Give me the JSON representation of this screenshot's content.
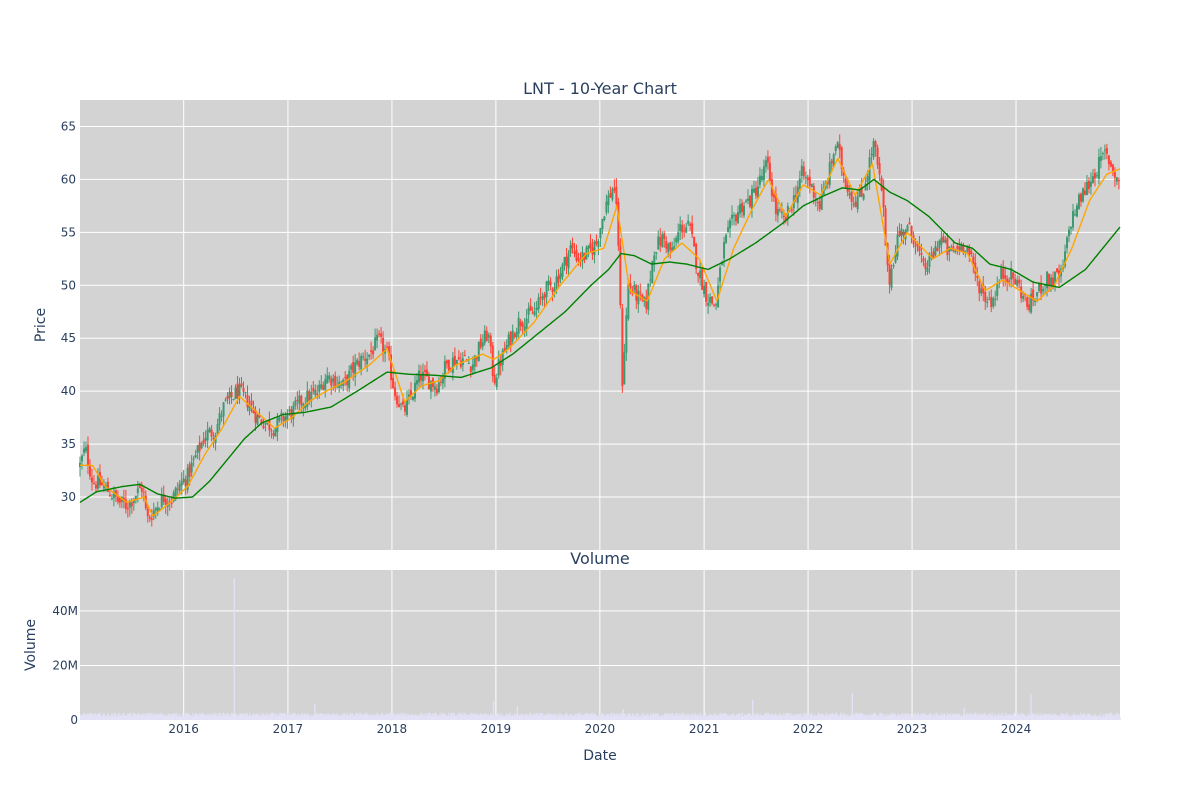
{
  "chart_data": [
    {
      "type": "candlestick",
      "title": "LNT - 10-Year Chart",
      "ylabel": "Price",
      "xlabel": "",
      "xlim": [
        "2015-01-02",
        "2024-12-31"
      ],
      "ylim": [
        25,
        67.5
      ],
      "y_ticks": [
        30,
        35,
        40,
        45,
        50,
        55,
        60,
        65
      ],
      "grid": true,
      "legend": "none",
      "background": "#d3d3d3",
      "colors": {
        "up": "#3d9970",
        "down": "#ff4136",
        "short_ma": "#ffa500",
        "long_ma": "#008000"
      },
      "close_anchors": [
        [
          "2015-01-02",
          33.0
        ],
        [
          "2015-01-20",
          34.6
        ],
        [
          "2015-02-15",
          31.5
        ],
        [
          "2015-03-15",
          31.2
        ],
        [
          "2015-04-15",
          30.5
        ],
        [
          "2015-05-20",
          29.5
        ],
        [
          "2015-06-15",
          29.2
        ],
        [
          "2015-07-15",
          30.2
        ],
        [
          "2015-08-10",
          31.0
        ],
        [
          "2015-08-25",
          27.8
        ],
        [
          "2015-09-20",
          28.8
        ],
        [
          "2015-10-20",
          30.0
        ],
        [
          "2015-11-20",
          29.8
        ],
        [
          "2015-12-20",
          31.2
        ],
        [
          "2016-01-15",
          32.0
        ],
        [
          "2016-02-15",
          34.0
        ],
        [
          "2016-03-20",
          36.0
        ],
        [
          "2016-04-20",
          36.2
        ],
        [
          "2016-05-20",
          38.5
        ],
        [
          "2016-06-20",
          39.5
        ],
        [
          "2016-07-10",
          40.0
        ],
        [
          "2016-08-15",
          39.0
        ],
        [
          "2016-09-15",
          37.5
        ],
        [
          "2016-10-15",
          37.0
        ],
        [
          "2016-11-15",
          36.5
        ],
        [
          "2016-12-15",
          37.5
        ],
        [
          "2017-01-15",
          38.0
        ],
        [
          "2017-02-15",
          39.0
        ],
        [
          "2017-03-15",
          39.5
        ],
        [
          "2017-04-15",
          39.8
        ],
        [
          "2017-05-15",
          41.5
        ],
        [
          "2017-06-15",
          41.0
        ],
        [
          "2017-07-15",
          40.5
        ],
        [
          "2017-08-15",
          42.0
        ],
        [
          "2017-09-15",
          43.0
        ],
        [
          "2017-10-15",
          43.5
        ],
        [
          "2017-11-15",
          44.8
        ],
        [
          "2017-12-15",
          43.5
        ],
        [
          "2018-01-10",
          40.0
        ],
        [
          "2018-02-10",
          38.0
        ],
        [
          "2018-03-10",
          39.5
        ],
        [
          "2018-04-10",
          41.5
        ],
        [
          "2018-05-10",
          41.0
        ],
        [
          "2018-06-10",
          40.5
        ],
        [
          "2018-07-10",
          42.5
        ],
        [
          "2018-08-10",
          43.0
        ],
        [
          "2018-09-10",
          43.0
        ],
        [
          "2018-10-10",
          42.5
        ],
        [
          "2018-11-10",
          44.5
        ],
        [
          "2018-12-05",
          45.5
        ],
        [
          "2018-12-25",
          41.0
        ],
        [
          "2019-01-20",
          43.0
        ],
        [
          "2019-02-20",
          45.0
        ],
        [
          "2019-03-20",
          46.5
        ],
        [
          "2019-04-20",
          47.0
        ],
        [
          "2019-05-20",
          47.5
        ],
        [
          "2019-06-20",
          49.5
        ],
        [
          "2019-07-20",
          50.0
        ],
        [
          "2019-08-20",
          51.5
        ],
        [
          "2019-09-20",
          53.5
        ],
        [
          "2019-10-20",
          52.5
        ],
        [
          "2019-11-20",
          53.0
        ],
        [
          "2019-12-20",
          54.0
        ],
        [
          "2020-01-20",
          57.5
        ],
        [
          "2020-02-20",
          59.5
        ],
        [
          "2020-03-05",
          55.0
        ],
        [
          "2020-03-20",
          41.0
        ],
        [
          "2020-04-10",
          50.0
        ],
        [
          "2020-05-10",
          49.0
        ],
        [
          "2020-06-10",
          48.0
        ],
        [
          "2020-07-10",
          53.5
        ],
        [
          "2020-08-10",
          54.5
        ],
        [
          "2020-09-10",
          53.0
        ],
        [
          "2020-10-10",
          55.5
        ],
        [
          "2020-11-10",
          55.5
        ],
        [
          "2020-12-10",
          51.5
        ],
        [
          "2021-01-10",
          49.0
        ],
        [
          "2021-02-10",
          48.0
        ],
        [
          "2021-03-10",
          53.5
        ],
        [
          "2021-04-10",
          56.0
        ],
        [
          "2021-05-10",
          57.5
        ],
        [
          "2021-06-10",
          58.0
        ],
        [
          "2021-07-10",
          59.5
        ],
        [
          "2021-08-10",
          61.5
        ],
        [
          "2021-09-10",
          57.0
        ],
        [
          "2021-10-10",
          56.0
        ],
        [
          "2021-11-10",
          58.0
        ],
        [
          "2021-12-10",
          60.5
        ],
        [
          "2022-01-10",
          59.5
        ],
        [
          "2022-02-10",
          57.5
        ],
        [
          "2022-03-10",
          60.0
        ],
        [
          "2022-04-10",
          63.5
        ],
        [
          "2022-05-10",
          60.0
        ],
        [
          "2022-06-10",
          58.0
        ],
        [
          "2022-07-10",
          58.5
        ],
        [
          "2022-08-20",
          63.5
        ],
        [
          "2022-09-20",
          58.0
        ],
        [
          "2022-10-10",
          50.0
        ],
        [
          "2022-11-10",
          54.5
        ],
        [
          "2022-12-10",
          55.5
        ],
        [
          "2023-01-10",
          54.5
        ],
        [
          "2023-02-10",
          51.5
        ],
        [
          "2023-03-10",
          52.5
        ],
        [
          "2023-04-10",
          54.5
        ],
        [
          "2023-05-10",
          53.0
        ],
        [
          "2023-06-10",
          53.5
        ],
        [
          "2023-07-10",
          54.0
        ],
        [
          "2023-08-10",
          51.0
        ],
        [
          "2023-09-10",
          49.0
        ],
        [
          "2023-10-10",
          48.5
        ],
        [
          "2023-11-10",
          51.0
        ],
        [
          "2023-12-10",
          51.0
        ],
        [
          "2024-01-10",
          50.0
        ],
        [
          "2024-02-10",
          48.0
        ],
        [
          "2024-03-10",
          49.0
        ],
        [
          "2024-04-10",
          50.5
        ],
        [
          "2024-05-10",
          50.5
        ],
        [
          "2024-06-10",
          51.0
        ],
        [
          "2024-07-10",
          56.0
        ],
        [
          "2024-08-10",
          58.0
        ],
        [
          "2024-09-10",
          59.5
        ],
        [
          "2024-10-10",
          61.0
        ],
        [
          "2024-11-10",
          62.5
        ],
        [
          "2024-12-31",
          59.5
        ]
      ],
      "ma_short": [
        [
          "2015-01-02",
          33.0
        ],
        [
          "2015-02-15",
          33.0
        ],
        [
          "2015-04-01",
          31.0
        ],
        [
          "2015-06-15",
          29.5
        ],
        [
          "2015-08-15",
          30.0
        ],
        [
          "2015-09-15",
          28.2
        ],
        [
          "2015-11-15",
          29.5
        ],
        [
          "2016-01-15",
          31.0
        ],
        [
          "2016-03-15",
          34.0
        ],
        [
          "2016-05-15",
          36.5
        ],
        [
          "2016-07-15",
          39.5
        ],
        [
          "2016-09-15",
          38.0
        ],
        [
          "2016-11-15",
          36.5
        ],
        [
          "2017-01-15",
          37.5
        ],
        [
          "2017-03-15",
          39.0
        ],
        [
          "2017-05-15",
          40.0
        ],
        [
          "2017-07-15",
          40.8
        ],
        [
          "2017-10-15",
          42.5
        ],
        [
          "2017-12-15",
          44.0
        ],
        [
          "2018-02-15",
          39.0
        ],
        [
          "2018-04-15",
          40.5
        ],
        [
          "2018-06-15",
          41.0
        ],
        [
          "2018-08-15",
          42.5
        ],
        [
          "2018-11-15",
          43.5
        ],
        [
          "2018-12-25",
          43.0
        ],
        [
          "2019-02-15",
          44.0
        ],
        [
          "2019-05-15",
          46.5
        ],
        [
          "2019-08-15",
          50.0
        ],
        [
          "2019-11-15",
          53.0
        ],
        [
          "2020-01-15",
          53.5
        ],
        [
          "2020-03-01",
          57.5
        ],
        [
          "2020-04-15",
          49.5
        ],
        [
          "2020-06-15",
          48.5
        ],
        [
          "2020-08-15",
          52.5
        ],
        [
          "2020-10-15",
          54.0
        ],
        [
          "2020-12-15",
          52.5
        ],
        [
          "2021-02-15",
          48.5
        ],
        [
          "2021-04-15",
          53.5
        ],
        [
          "2021-06-15",
          57.0
        ],
        [
          "2021-08-15",
          60.0
        ],
        [
          "2021-10-15",
          56.5
        ],
        [
          "2021-12-15",
          59.5
        ],
        [
          "2022-02-15",
          58.5
        ],
        [
          "2022-04-15",
          62.0
        ],
        [
          "2022-06-15",
          58.5
        ],
        [
          "2022-08-15",
          61.5
        ],
        [
          "2022-10-15",
          52.0
        ],
        [
          "2022-12-15",
          55.0
        ],
        [
          "2023-03-15",
          52.5
        ],
        [
          "2023-05-15",
          53.5
        ],
        [
          "2023-07-15",
          53.0
        ],
        [
          "2023-09-15",
          49.5
        ],
        [
          "2023-11-15",
          50.5
        ],
        [
          "2024-01-15",
          49.5
        ],
        [
          "2024-03-15",
          48.5
        ],
        [
          "2024-05-15",
          50.0
        ],
        [
          "2024-07-15",
          53.5
        ],
        [
          "2024-09-15",
          58.0
        ],
        [
          "2024-11-15",
          60.5
        ],
        [
          "2024-12-31",
          61.0
        ]
      ],
      "ma_long": [
        [
          "2015-01-02",
          29.5
        ],
        [
          "2015-03-01",
          30.5
        ],
        [
          "2015-06-01",
          31.0
        ],
        [
          "2015-08-01",
          31.2
        ],
        [
          "2015-10-01",
          30.3
        ],
        [
          "2015-12-01",
          29.9
        ],
        [
          "2016-02-01",
          30.0
        ],
        [
          "2016-04-01",
          31.5
        ],
        [
          "2016-06-01",
          33.5
        ],
        [
          "2016-08-01",
          35.5
        ],
        [
          "2016-10-01",
          37.0
        ],
        [
          "2016-12-15",
          37.8
        ],
        [
          "2017-03-01",
          38.0
        ],
        [
          "2017-06-01",
          38.5
        ],
        [
          "2017-09-01",
          40.0
        ],
        [
          "2017-12-15",
          41.8
        ],
        [
          "2018-03-01",
          41.6
        ],
        [
          "2018-06-01",
          41.5
        ],
        [
          "2018-09-01",
          41.3
        ],
        [
          "2018-12-15",
          42.2
        ],
        [
          "2019-03-01",
          43.5
        ],
        [
          "2019-06-01",
          45.5
        ],
        [
          "2019-09-01",
          47.5
        ],
        [
          "2019-12-01",
          50.0
        ],
        [
          "2020-02-01",
          51.5
        ],
        [
          "2020-03-15",
          53.0
        ],
        [
          "2020-05-01",
          52.8
        ],
        [
          "2020-07-01",
          52.0
        ],
        [
          "2020-09-01",
          52.2
        ],
        [
          "2020-11-01",
          52.0
        ],
        [
          "2021-01-15",
          51.5
        ],
        [
          "2021-04-01",
          52.5
        ],
        [
          "2021-07-01",
          54.0
        ],
        [
          "2021-10-01",
          55.8
        ],
        [
          "2021-12-15",
          57.5
        ],
        [
          "2022-03-01",
          58.5
        ],
        [
          "2022-05-01",
          59.2
        ],
        [
          "2022-07-01",
          59.0
        ],
        [
          "2022-08-20",
          60.0
        ],
        [
          "2022-10-15",
          58.8
        ],
        [
          "2022-12-15",
          58.0
        ],
        [
          "2023-03-01",
          56.5
        ],
        [
          "2023-06-01",
          54.0
        ],
        [
          "2023-08-01",
          53.5
        ],
        [
          "2023-10-01",
          52.0
        ],
        [
          "2023-12-15",
          51.5
        ],
        [
          "2024-03-01",
          50.3
        ],
        [
          "2024-06-01",
          49.8
        ],
        [
          "2024-09-01",
          51.5
        ],
        [
          "2024-12-31",
          55.5
        ]
      ]
    },
    {
      "type": "bar",
      "title": "Volume",
      "ylabel": "Volume",
      "xlabel": "Date",
      "xlim": [
        "2015-01-02",
        "2024-12-31"
      ],
      "ylim": [
        0,
        55000000
      ],
      "y_ticks": [
        0,
        20000000,
        40000000
      ],
      "y_tick_labels": [
        "0",
        "20M",
        "40M"
      ],
      "x_ticks": [
        "2016-01-01",
        "2017-01-01",
        "2018-01-01",
        "2019-01-01",
        "2020-01-01",
        "2021-01-01",
        "2022-01-01",
        "2023-01-01",
        "2024-01-01"
      ],
      "x_tick_labels": [
        "2016",
        "2017",
        "2018",
        "2019",
        "2020",
        "2021",
        "2022",
        "2023",
        "2024"
      ],
      "grid": true,
      "background": "#d3d3d3",
      "bar_color": "#e3e1f5",
      "baseline_volume": 1800000,
      "spikes": [
        [
          "2016-06-24",
          52000000
        ],
        [
          "2017-04-03",
          6000000
        ],
        [
          "2018-12-21",
          7000000
        ],
        [
          "2019-03-15",
          5000000
        ],
        [
          "2020-03-20",
          4000000
        ],
        [
          "2021-06-18",
          7500000
        ],
        [
          "2022-06-03",
          10000000
        ],
        [
          "2023-07-01",
          4500000
        ],
        [
          "2024-02-20",
          9500000
        ]
      ]
    }
  ]
}
